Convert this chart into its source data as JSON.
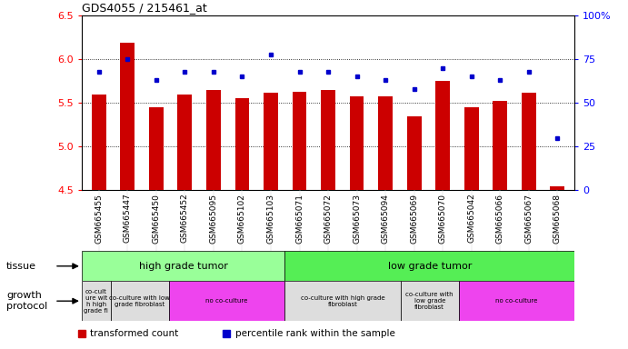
{
  "title": "GDS4055 / 215461_at",
  "samples": [
    "GSM665455",
    "GSM665447",
    "GSM665450",
    "GSM665452",
    "GSM665095",
    "GSM665102",
    "GSM665103",
    "GSM665071",
    "GSM665072",
    "GSM665073",
    "GSM665094",
    "GSM665069",
    "GSM665070",
    "GSM665042",
    "GSM665066",
    "GSM665067",
    "GSM665068"
  ],
  "red_values": [
    5.6,
    6.19,
    5.45,
    5.6,
    5.65,
    5.55,
    5.62,
    5.63,
    5.65,
    5.58,
    5.58,
    5.35,
    5.75,
    5.45,
    5.52,
    5.62,
    4.54
  ],
  "blue_values": [
    68,
    75,
    63,
    68,
    68,
    65,
    78,
    68,
    68,
    65,
    63,
    58,
    70,
    65,
    63,
    68,
    30
  ],
  "ylim": [
    4.5,
    6.5
  ],
  "y2lim": [
    0,
    100
  ],
  "yticks": [
    4.5,
    5.0,
    5.5,
    6.0,
    6.5
  ],
  "y2ticks": [
    0,
    25,
    50,
    75,
    100
  ],
  "tissue_groups": [
    {
      "label": "high grade tumor",
      "start": 0,
      "end": 7,
      "color": "#99ff99"
    },
    {
      "label": "low grade tumor",
      "start": 7,
      "end": 17,
      "color": "#55ee55"
    }
  ],
  "growth_groups": [
    {
      "label": "co-cult\nure wit\nh high\ngrade fi",
      "start": 0,
      "end": 1,
      "color": "#dddddd"
    },
    {
      "label": "co-culture with low\ngrade fibroblast",
      "start": 1,
      "end": 3,
      "color": "#dddddd"
    },
    {
      "label": "no co-culture",
      "start": 3,
      "end": 7,
      "color": "#ee44ee"
    },
    {
      "label": "co-culture with high grade\nfibroblast",
      "start": 7,
      "end": 11,
      "color": "#dddddd"
    },
    {
      "label": "co-culture with\nlow grade\nfibroblast",
      "start": 11,
      "end": 13,
      "color": "#dddddd"
    },
    {
      "label": "no co-culture",
      "start": 13,
      "end": 17,
      "color": "#ee44ee"
    }
  ],
  "bar_color": "#cc0000",
  "dot_color": "#0000cc",
  "bar_bottom": 4.5
}
